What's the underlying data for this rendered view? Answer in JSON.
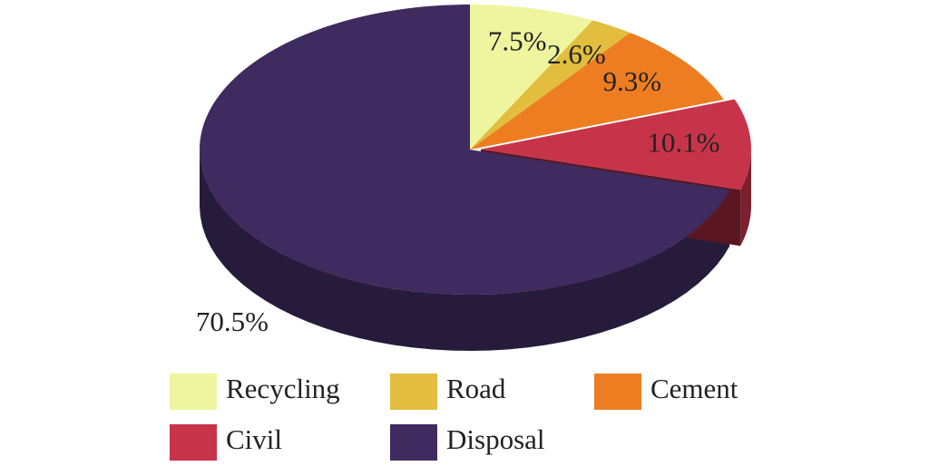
{
  "chart_data": {
    "type": "pie3d",
    "categories": [
      "Recycling",
      "Road",
      "Cement",
      "Civil",
      "Disposal"
    ],
    "values": [
      7.5,
      2.6,
      9.3,
      10.1,
      70.5
    ],
    "value_labels": [
      "7.5%",
      "2.6%",
      "9.3%",
      "10.1%",
      "70.5%"
    ],
    "colors": [
      "#eef59e",
      "#e2bd3e",
      "#ee7d22",
      "#c7344a",
      "#3f2b5f"
    ],
    "legend": "bottom"
  }
}
